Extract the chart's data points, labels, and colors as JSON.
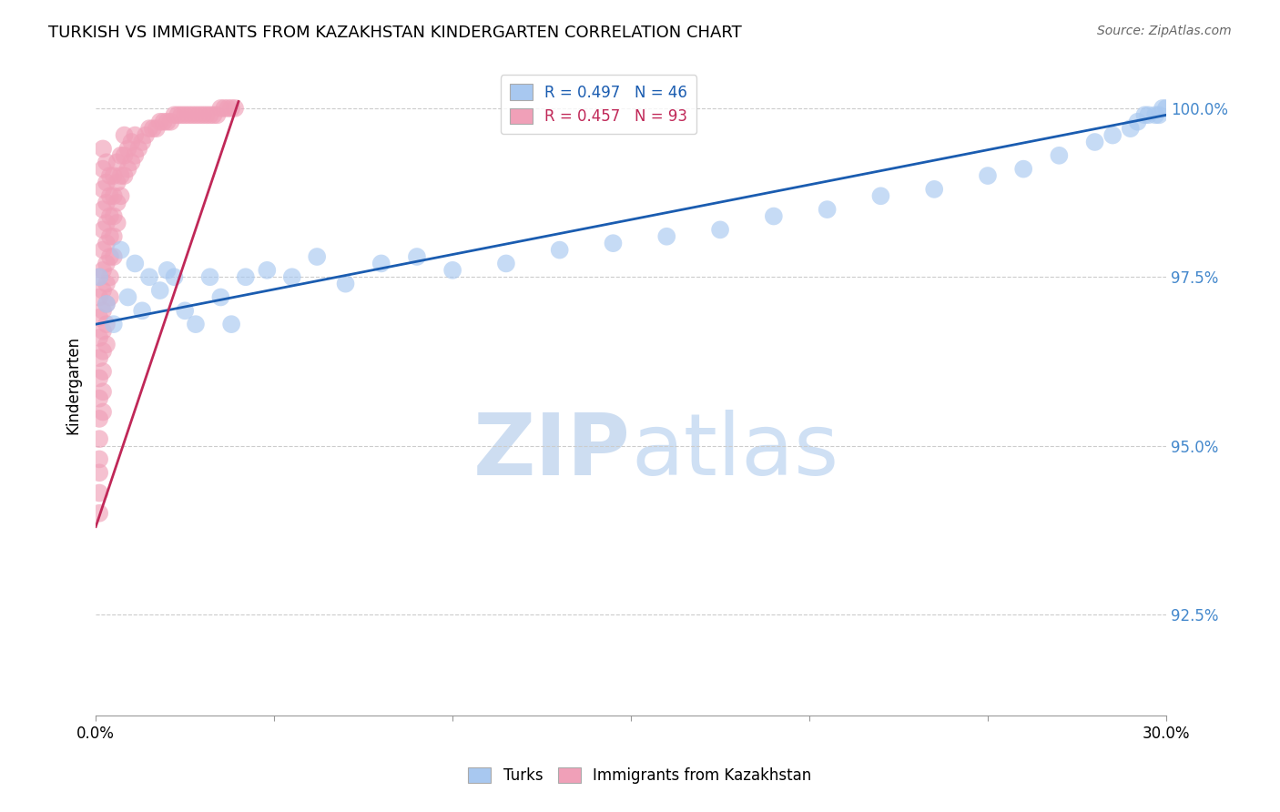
{
  "title": "TURKISH VS IMMIGRANTS FROM KAZAKHSTAN KINDERGARTEN CORRELATION CHART",
  "source": "Source: ZipAtlas.com",
  "ylabel": "Kindergarten",
  "yticks": [
    0.925,
    0.95,
    0.975,
    1.0
  ],
  "ytick_labels": [
    "92.5%",
    "95.0%",
    "97.5%",
    "100.0%"
  ],
  "xlim": [
    0.0,
    0.3
  ],
  "ylim": [
    0.91,
    1.008
  ],
  "blue_color": "#a8c8f0",
  "pink_color": "#f0a0b8",
  "blue_line_color": "#1a5cb0",
  "pink_line_color": "#c02858",
  "legend_blue_label": "R = 0.497   N = 46",
  "legend_pink_label": "R = 0.457   N = 93",
  "turks_label": "Turks",
  "immigrants_label": "Immigrants from Kazakhstan",
  "background_color": "#ffffff",
  "grid_color": "#cccccc",
  "blue_x": [
    0.001,
    0.003,
    0.005,
    0.007,
    0.009,
    0.011,
    0.013,
    0.015,
    0.018,
    0.02,
    0.022,
    0.025,
    0.028,
    0.032,
    0.035,
    0.038,
    0.042,
    0.048,
    0.055,
    0.062,
    0.07,
    0.08,
    0.09,
    0.1,
    0.115,
    0.13,
    0.145,
    0.16,
    0.175,
    0.19,
    0.205,
    0.22,
    0.235,
    0.25,
    0.26,
    0.27,
    0.28,
    0.285,
    0.29,
    0.292,
    0.294,
    0.295,
    0.297,
    0.298,
    0.299,
    0.3
  ],
  "blue_y": [
    0.975,
    0.971,
    0.968,
    0.979,
    0.972,
    0.977,
    0.97,
    0.975,
    0.973,
    0.976,
    0.975,
    0.97,
    0.968,
    0.975,
    0.972,
    0.968,
    0.975,
    0.976,
    0.975,
    0.978,
    0.974,
    0.977,
    0.978,
    0.976,
    0.977,
    0.979,
    0.98,
    0.981,
    0.982,
    0.984,
    0.985,
    0.987,
    0.988,
    0.99,
    0.991,
    0.993,
    0.995,
    0.996,
    0.997,
    0.998,
    0.999,
    0.999,
    0.999,
    0.999,
    1.0,
    1.0
  ],
  "pink_x": [
    0.001,
    0.001,
    0.001,
    0.001,
    0.001,
    0.001,
    0.001,
    0.001,
    0.001,
    0.001,
    0.001,
    0.001,
    0.001,
    0.002,
    0.002,
    0.002,
    0.002,
    0.002,
    0.002,
    0.002,
    0.002,
    0.002,
    0.002,
    0.002,
    0.002,
    0.002,
    0.002,
    0.003,
    0.003,
    0.003,
    0.003,
    0.003,
    0.003,
    0.003,
    0.003,
    0.003,
    0.003,
    0.004,
    0.004,
    0.004,
    0.004,
    0.004,
    0.004,
    0.004,
    0.005,
    0.005,
    0.005,
    0.005,
    0.005,
    0.006,
    0.006,
    0.006,
    0.006,
    0.007,
    0.007,
    0.007,
    0.008,
    0.008,
    0.008,
    0.009,
    0.009,
    0.01,
    0.01,
    0.011,
    0.011,
    0.012,
    0.013,
    0.014,
    0.015,
    0.016,
    0.017,
    0.018,
    0.019,
    0.02,
    0.021,
    0.022,
    0.023,
    0.024,
    0.025,
    0.026,
    0.027,
    0.028,
    0.029,
    0.03,
    0.031,
    0.032,
    0.033,
    0.034,
    0.035,
    0.036,
    0.037,
    0.038,
    0.039
  ],
  "pink_y": [
    0.94,
    0.943,
    0.946,
    0.948,
    0.951,
    0.954,
    0.957,
    0.96,
    0.963,
    0.966,
    0.969,
    0.972,
    0.975,
    0.955,
    0.958,
    0.961,
    0.964,
    0.967,
    0.97,
    0.973,
    0.976,
    0.979,
    0.982,
    0.985,
    0.988,
    0.991,
    0.994,
    0.965,
    0.968,
    0.971,
    0.974,
    0.977,
    0.98,
    0.983,
    0.986,
    0.989,
    0.992,
    0.972,
    0.975,
    0.978,
    0.981,
    0.984,
    0.987,
    0.99,
    0.978,
    0.981,
    0.984,
    0.987,
    0.99,
    0.983,
    0.986,
    0.989,
    0.992,
    0.987,
    0.99,
    0.993,
    0.99,
    0.993,
    0.996,
    0.991,
    0.994,
    0.992,
    0.995,
    0.993,
    0.996,
    0.994,
    0.995,
    0.996,
    0.997,
    0.997,
    0.997,
    0.998,
    0.998,
    0.998,
    0.998,
    0.999,
    0.999,
    0.999,
    0.999,
    0.999,
    0.999,
    0.999,
    0.999,
    0.999,
    0.999,
    0.999,
    0.999,
    0.999,
    1.0,
    1.0,
    1.0,
    1.0,
    1.0
  ],
  "blue_trend_x": [
    0.0,
    0.3
  ],
  "blue_trend_y": [
    0.968,
    0.999
  ],
  "pink_trend_x": [
    0.0,
    0.04
  ],
  "pink_trend_y": [
    0.938,
    1.001
  ]
}
